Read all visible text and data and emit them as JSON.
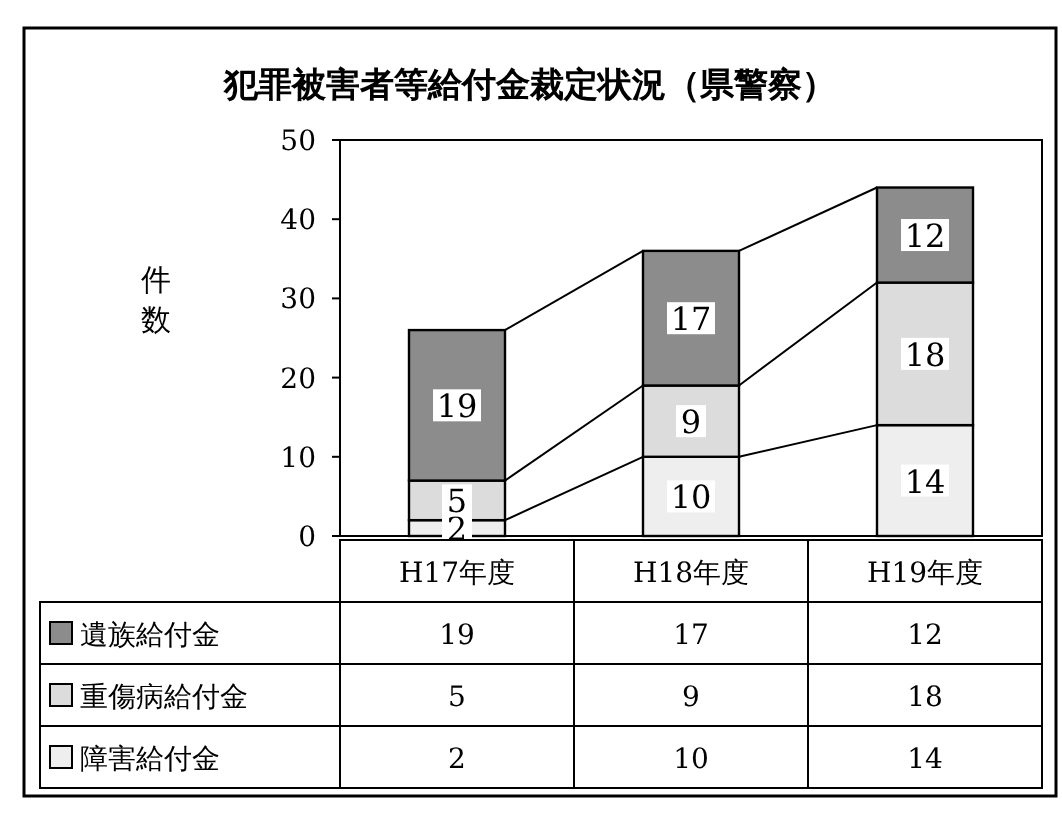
{
  "chart_data": {
    "type": "bar",
    "title": "犯罪被害者等給付金裁定状況（県警察）",
    "ylabel": "件数",
    "categories": [
      "H17年度",
      "H18年度",
      "H19年度"
    ],
    "stacked": true,
    "data_labels": true,
    "legend": "bottom",
    "ylim": [
      0,
      50
    ],
    "yticks": [
      0,
      10,
      20,
      30,
      40,
      50
    ],
    "grid": false,
    "annotations": [
      "19",
      "17",
      "12",
      "5",
      "9",
      "18",
      "2",
      "10",
      "14"
    ],
    "series": [
      {
        "name": "障害給付金",
        "color": "#eeeeee",
        "values": [
          2,
          10,
          14
        ],
        "value_labels": [
          "2",
          "10",
          "14"
        ]
      },
      {
        "name": "重傷病給付金",
        "color": "#dcdcdc",
        "values": [
          5,
          9,
          18
        ],
        "value_labels": [
          "5",
          "9",
          "18"
        ]
      },
      {
        "name": "遺族給付金",
        "color": "#8c8c8c",
        "values": [
          19,
          17,
          12
        ],
        "value_labels": [
          "19",
          "17",
          "12"
        ]
      }
    ]
  }
}
